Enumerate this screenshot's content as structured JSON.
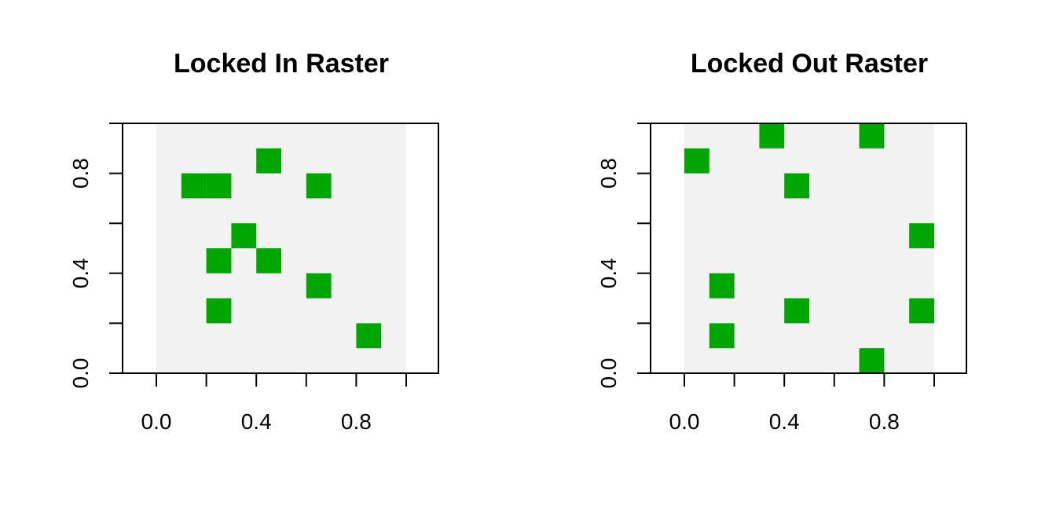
{
  "chart_data": [
    {
      "type": "heatmap",
      "title": "Locked In Raster",
      "xlabel": "",
      "ylabel": "",
      "xlim": [
        0,
        1
      ],
      "ylim": [
        0,
        1
      ],
      "xticks": [
        "0.0",
        "0.4",
        "0.8"
      ],
      "yticks": [
        "0.0",
        "0.4",
        "0.8"
      ],
      "grid": "off",
      "background_color": "#f2f2f2",
      "cell_color": "#00a600",
      "cells": [
        {
          "x": 0.15,
          "y": 0.75
        },
        {
          "x": 0.25,
          "y": 0.75
        },
        {
          "x": 0.45,
          "y": 0.85
        },
        {
          "x": 0.65,
          "y": 0.75
        },
        {
          "x": 0.35,
          "y": 0.55
        },
        {
          "x": 0.25,
          "y": 0.45
        },
        {
          "x": 0.45,
          "y": 0.45
        },
        {
          "x": 0.65,
          "y": 0.35
        },
        {
          "x": 0.25,
          "y": 0.25
        },
        {
          "x": 0.85,
          "y": 0.15
        }
      ]
    },
    {
      "type": "heatmap",
      "title": "Locked Out Raster",
      "xlabel": "",
      "ylabel": "",
      "xlim": [
        0,
        1
      ],
      "ylim": [
        0,
        1
      ],
      "xticks": [
        "0.0",
        "0.4",
        "0.8"
      ],
      "yticks": [
        "0.0",
        "0.4",
        "0.8"
      ],
      "grid": "off",
      "background_color": "#f2f2f2",
      "cell_color": "#00a600",
      "cells": [
        {
          "x": 0.35,
          "y": 0.95
        },
        {
          "x": 0.75,
          "y": 0.95
        },
        {
          "x": 0.05,
          "y": 0.85
        },
        {
          "x": 0.45,
          "y": 0.75
        },
        {
          "x": 0.95,
          "y": 0.55
        },
        {
          "x": 0.15,
          "y": 0.35
        },
        {
          "x": 0.45,
          "y": 0.25
        },
        {
          "x": 0.95,
          "y": 0.25
        },
        {
          "x": 0.15,
          "y": 0.15
        },
        {
          "x": 0.75,
          "y": 0.05
        }
      ]
    }
  ]
}
